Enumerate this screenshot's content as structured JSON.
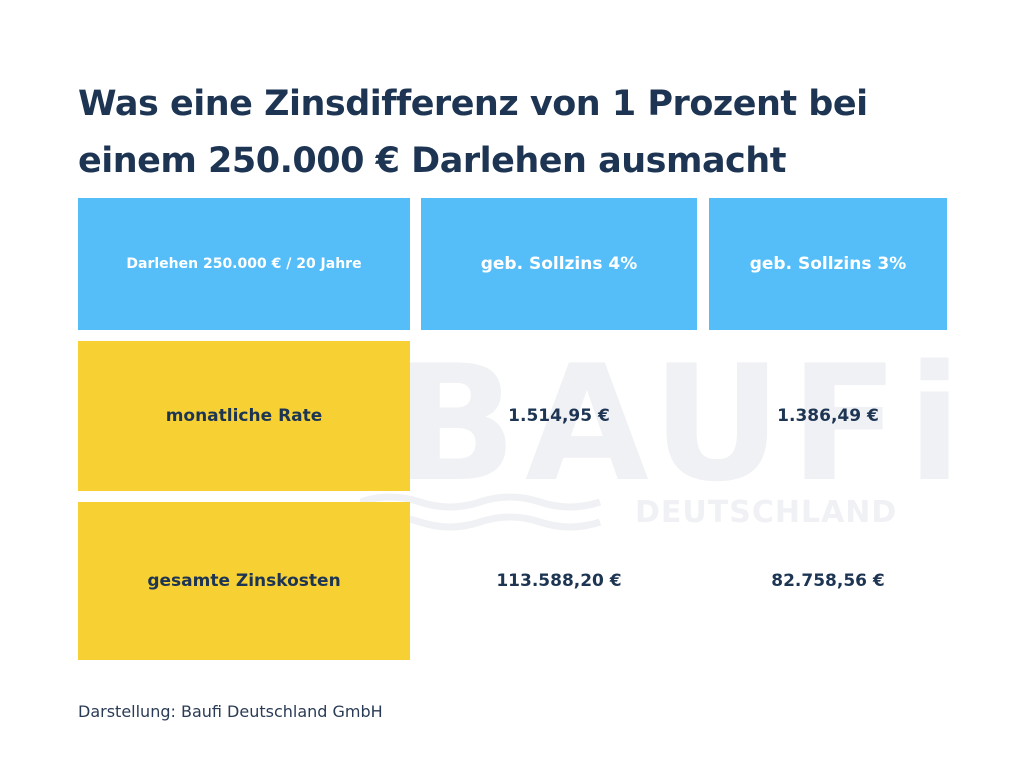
{
  "header": {
    "title_lines": [
      "Was eine Zinsdifferenz von 1 Prozent bei",
      "einem 250.000 € Darlehen ausmacht"
    ]
  },
  "watermark": {
    "brand": "BAUFi",
    "sub": "DEUTSCHLAND"
  },
  "table": {
    "header": [
      "Darlehen 250.000 € / 20 Jahre",
      "geb. Sollzins 4%",
      "geb. Sollzins 3%"
    ],
    "rows": [
      [
        "monatliche Rate",
        "1.514,95 €",
        "1.386,49 €"
      ],
      [
        "gesamte Zinskosten",
        "113.588,20 €",
        "82.758,56 €"
      ]
    ]
  },
  "footer": {
    "source": "Darstellung: Baufi Deutschland GmbH"
  }
}
